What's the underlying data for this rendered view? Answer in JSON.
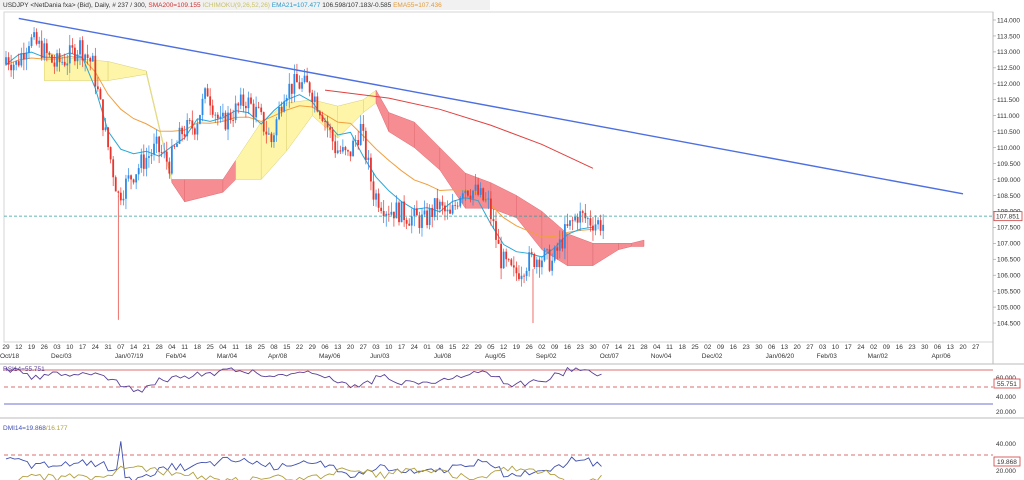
{
  "header": {
    "symbol_line": "USDJPY <NetDania fxa> (Bid), Daily, # 237 / 300,",
    "sma200": "SMA200=109.155",
    "ichimoku": "ICHIMOKU(9,26,52,26)",
    "ema21": "EMA21=107.477",
    "close_info": "106.598/107.183/-0.585",
    "ema55": "EMA55=107.436"
  },
  "price_tag": "107.851",
  "rsi": {
    "label": "RSI14=55.751",
    "value_tag": "55.751",
    "ticks": [
      "60.000",
      "40.000",
      "20.000"
    ]
  },
  "dmi": {
    "label": "DMI14=19.868",
    "label2": "/16.177",
    "value_tag": "19.868",
    "ticks": [
      "40.000",
      "20.000"
    ]
  },
  "colors": {
    "candle_up": "#2b8ae6",
    "candle_down": "#e8342c",
    "trendline": "#4d6fe0",
    "sma200": "#e04040",
    "ema21": "#29a7d6",
    "ema55": "#f0a040",
    "kumo_bull": "#fff5a8",
    "kumo_bear": "#f58d92",
    "rsi_line": "#5a3f99",
    "dmi_plus": "#4050b0",
    "dmi_minus": "#b0a040",
    "ref_line": "#d04040"
  },
  "chart_data": {
    "type": "candlestick",
    "symbol": "USDJPY",
    "timeframe": "Daily",
    "y_ticks": [
      114.0,
      113.5,
      113.0,
      112.5,
      112.0,
      111.5,
      111.0,
      110.5,
      110.0,
      109.5,
      109.0,
      108.5,
      108.0,
      107.5,
      107.0,
      106.5,
      106.0,
      105.5,
      105.0,
      104.5
    ],
    "ylim": [
      104.2,
      114.2
    ],
    "current_price": 107.851,
    "x_day_labels": [
      "29",
      "12",
      "19",
      "26",
      "03",
      "10",
      "17",
      "24",
      "31",
      "07",
      "14",
      "21",
      "28",
      "04",
      "11",
      "18",
      "25",
      "04",
      "11",
      "18",
      "25",
      "08",
      "15",
      "22",
      "29",
      "06",
      "13",
      "20",
      "27",
      "03",
      "10",
      "17",
      "24",
      "01",
      "08",
      "15",
      "22",
      "29",
      "05",
      "12",
      "19",
      "26",
      "02",
      "09",
      "16",
      "23",
      "30",
      "07",
      "14",
      "21",
      "28",
      "04",
      "11",
      "18",
      "25",
      "02",
      "09",
      "16",
      "23",
      "30",
      "06",
      "13",
      "20",
      "27",
      "03",
      "10",
      "17",
      "24",
      "02",
      "09",
      "16",
      "23",
      "30",
      "06",
      "13",
      "20",
      "27"
    ],
    "x_month_labels": [
      {
        "text": "Oct/18",
        "index": 0
      },
      {
        "text": "Dec/03",
        "index": 4
      },
      {
        "text": "Jan/07/19",
        "index": 9
      },
      {
        "text": "Feb/04",
        "index": 13
      },
      {
        "text": "Mar/04",
        "index": 17
      },
      {
        "text": "Apr/08",
        "index": 21
      },
      {
        "text": "May/06",
        "index": 25
      },
      {
        "text": "Jun/03",
        "index": 29
      },
      {
        "text": "Jul/08",
        "index": 34
      },
      {
        "text": "Aug/05",
        "index": 38
      },
      {
        "text": "Sep/02",
        "index": 42
      },
      {
        "text": "Oct/07",
        "index": 47
      },
      {
        "text": "Nov/04",
        "index": 51
      },
      {
        "text": "Dec/02",
        "index": 55
      },
      {
        "text": "Jan/06/20",
        "index": 60
      },
      {
        "text": "Feb/03",
        "index": 64
      },
      {
        "text": "Mar/02",
        "index": 68
      },
      {
        "text": "Apr/06",
        "index": 73
      }
    ],
    "weekly_closes": [
      112.6,
      113.4,
      113.1,
      112.6,
      112.8,
      113.2,
      112.6,
      110.4,
      108.5,
      109.1,
      109.6,
      110.0,
      109.5,
      110.5,
      110.7,
      111.8,
      110.7,
      111.1,
      111.5,
      111.0,
      110.2,
      111.8,
      112.0,
      111.9,
      111.1,
      110.0,
      109.7,
      110.6,
      108.6,
      108.1,
      108.0,
      107.8,
      107.7,
      108.2,
      107.8,
      108.8,
      108.6,
      108.2,
      106.5,
      106.0,
      106.4,
      106.6,
      106.4,
      107.3,
      107.9,
      107.7,
      107.6
    ],
    "trendline": {
      "from": {
        "index": 1,
        "price": 114.05
      },
      "to": {
        "index": 75,
        "price": 108.55
      }
    },
    "sma200": [
      [
        25,
        111.8
      ],
      [
        30,
        111.55
      ],
      [
        34,
        111.2
      ],
      [
        38,
        110.7
      ],
      [
        42,
        110.1
      ],
      [
        46,
        109.35
      ]
    ],
    "kumo_top": [
      [
        3,
        113.0
      ],
      [
        5,
        112.8
      ],
      [
        8,
        112.7
      ],
      [
        11,
        112.4
      ],
      [
        13,
        109.0
      ],
      [
        14,
        109.0
      ],
      [
        17,
        109.0
      ],
      [
        18,
        109.6
      ],
      [
        20,
        110.8
      ],
      [
        22,
        111.4
      ],
      [
        24,
        111.5
      ],
      [
        26,
        111.3
      ],
      [
        28,
        111.5
      ],
      [
        29,
        111.8
      ],
      [
        30,
        111.1
      ],
      [
        32,
        110.8
      ],
      [
        34,
        110.0
      ],
      [
        36,
        109.2
      ],
      [
        38,
        108.9
      ],
      [
        40,
        108.5
      ],
      [
        42,
        108.0
      ],
      [
        44,
        107.3
      ],
      [
        46,
        107.0
      ],
      [
        48,
        107.0
      ],
      [
        49,
        107.0
      ],
      [
        50,
        107.1
      ]
    ],
    "kumo_bottom": [
      [
        3,
        112.1
      ],
      [
        5,
        112.1
      ],
      [
        8,
        112.1
      ],
      [
        11,
        112.3
      ],
      [
        13,
        108.9
      ],
      [
        14,
        108.3
      ],
      [
        17,
        108.6
      ],
      [
        18,
        109.0
      ],
      [
        20,
        109.0
      ],
      [
        22,
        109.9
      ],
      [
        24,
        111.0
      ],
      [
        26,
        110.3
      ],
      [
        28,
        111.1
      ],
      [
        29,
        111.4
      ],
      [
        30,
        110.5
      ],
      [
        32,
        110.0
      ],
      [
        34,
        109.3
      ],
      [
        36,
        108.1
      ],
      [
        38,
        108.1
      ],
      [
        40,
        107.8
      ],
      [
        42,
        106.8
      ],
      [
        44,
        106.3
      ],
      [
        46,
        106.3
      ],
      [
        48,
        106.8
      ],
      [
        49,
        106.9
      ],
      [
        50,
        106.9
      ]
    ],
    "rsi_values": [
      60,
      58,
      52,
      55,
      56,
      54,
      57,
      55,
      48,
      42,
      36,
      44,
      48,
      52,
      50,
      55,
      56,
      60,
      59,
      58,
      54,
      52,
      56,
      59,
      55,
      50,
      44,
      42,
      46,
      52,
      47,
      45,
      44,
      46,
      48,
      52,
      56,
      57,
      50,
      42,
      44,
      46,
      49,
      55,
      60,
      62,
      56
    ]
  }
}
